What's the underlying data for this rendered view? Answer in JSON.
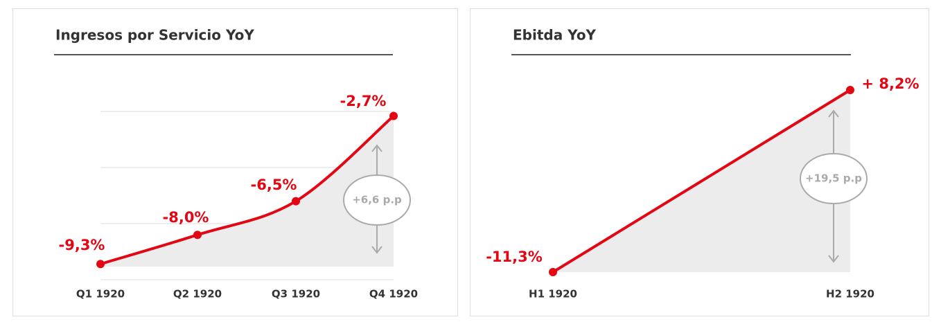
{
  "chart_data": [
    {
      "type": "line",
      "title": "Ingresos por Servicio YoY",
      "categories": [
        "Q1 1920",
        "Q2 1920",
        "Q3 1920",
        "Q4 1920"
      ],
      "values": [
        -9.3,
        -8.0,
        -6.5,
        -2.7
      ],
      "value_labels": [
        "-9,3%",
        "-8,0%",
        "-6,5%",
        "-2,7%"
      ],
      "color": "#e30613",
      "ylim": [
        -10,
        -2.5
      ],
      "yticks": [
        -10,
        -7.5,
        -5,
        -2.5
      ],
      "grid": true,
      "annotation": "+6,6 p.p"
    },
    {
      "type": "line",
      "title": "Ebitda YoY",
      "categories": [
        "H1 1920",
        "H2 1920"
      ],
      "values": [
        -11.3,
        8.2
      ],
      "value_labels": [
        "-11,3%",
        "+ 8,2%"
      ],
      "color": "#e30613",
      "ylim": [
        -11.3,
        8.2
      ],
      "grid": false,
      "annotation": "+19,5 p.p"
    }
  ]
}
